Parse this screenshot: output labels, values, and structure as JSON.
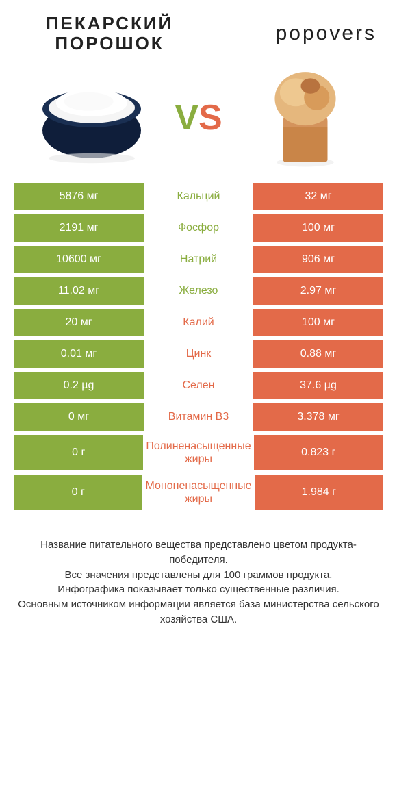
{
  "title_left": "ПЕКАРСКИЙ ПОРОШОК",
  "title_right": "popovers",
  "vs": "VS",
  "colors": {
    "green": "#8aad3f",
    "orange": "#e36a49",
    "text": "#333333",
    "bg": "#ffffff"
  },
  "rows": [
    {
      "left": "5876 мг",
      "label": "Кальций",
      "right": "32 мг",
      "winner": "left",
      "tall": false
    },
    {
      "left": "2191 мг",
      "label": "Фосфор",
      "right": "100 мг",
      "winner": "left",
      "tall": false
    },
    {
      "left": "10600 мг",
      "label": "Натрий",
      "right": "906 мг",
      "winner": "left",
      "tall": false
    },
    {
      "left": "11.02 мг",
      "label": "Железо",
      "right": "2.97 мг",
      "winner": "left",
      "tall": false
    },
    {
      "left": "20 мг",
      "label": "Калий",
      "right": "100 мг",
      "winner": "right",
      "tall": false
    },
    {
      "left": "0.01 мг",
      "label": "Цинк",
      "right": "0.88 мг",
      "winner": "right",
      "tall": false
    },
    {
      "left": "0.2 µg",
      "label": "Селен",
      "right": "37.6 µg",
      "winner": "right",
      "tall": false
    },
    {
      "left": "0 мг",
      "label": "Витамин B3",
      "right": "3.378 мг",
      "winner": "right",
      "tall": false
    },
    {
      "left": "0 г",
      "label": "Полиненасыщенные жиры",
      "right": "0.823 г",
      "winner": "right",
      "tall": true
    },
    {
      "left": "0 г",
      "label": "Мононенасыщенные жиры",
      "right": "1.984 г",
      "winner": "right",
      "tall": true
    }
  ],
  "footer": "Название питательного вещества представлено цветом продукта-победителя.\nВсе значения представлены для 100 граммов продукта.\nИнфографика показывает только существенные различия.\nОсновным источником информации является база министерства сельского хозяйства США."
}
